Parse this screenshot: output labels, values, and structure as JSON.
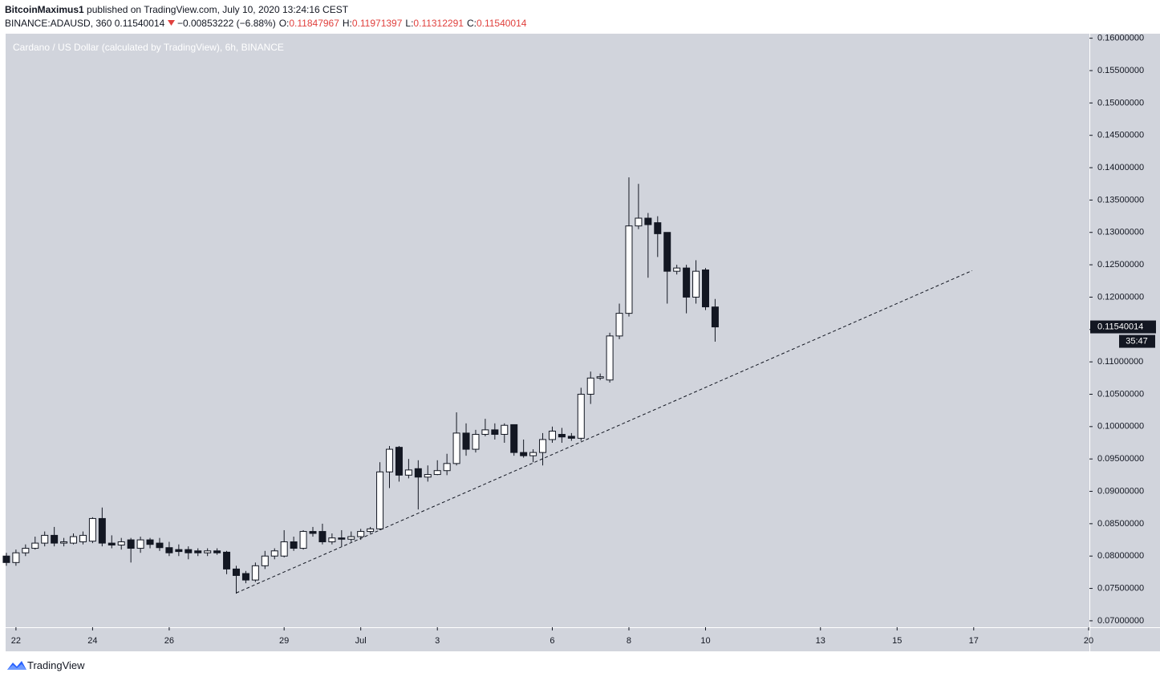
{
  "header": {
    "author": "BitcoinMaximus1",
    "published": "published on TradingView.com, July 10, 2020 13:24:16 CEST",
    "symbol": "BINANCE:ADAUSD, 360",
    "change": "−0.00853222 (−6.88%)",
    "labels": [
      "O:",
      "H:",
      "L:",
      "C:"
    ]
  },
  "footer": {
    "brand": "TradingView"
  },
  "chart_data": {
    "type": "candlestick",
    "title": "Cardano / US Dollar (calculated by TradingView), 6h, BINANCE",
    "x": [
      -0.25,
      0,
      0.25,
      0.5,
      0.75,
      1,
      1.25,
      1.5,
      1.75,
      2,
      2.25,
      2.5,
      2.75,
      3,
      3.25,
      3.5,
      3.75,
      4,
      4.25,
      4.5,
      4.75,
      5,
      5.25,
      5.5,
      5.75,
      6,
      6.25,
      6.5,
      6.75,
      7,
      7.25,
      7.5,
      7.75,
      8,
      8.25,
      8.5,
      8.75,
      9,
      9.25,
      9.5,
      9.75,
      10,
      10.25,
      10.5,
      10.75,
      11,
      11.25,
      11.5,
      11.75,
      12,
      12.25,
      12.5,
      12.75,
      13,
      13.25,
      13.5,
      13.75,
      14,
      14.25,
      14.5,
      14.75,
      15,
      15.25,
      15.5,
      15.75,
      16,
      16.25,
      16.5,
      16.75,
      17,
      17.25,
      17.5,
      17.75,
      18,
      18.25
    ],
    "open": [
      0.08,
      0.079,
      0.0805,
      0.0812,
      0.082,
      0.0832,
      0.082,
      0.082,
      0.0822,
      0.0823,
      0.0858,
      0.082,
      0.0817,
      0.0825,
      0.0812,
      0.0825,
      0.082,
      0.0813,
      0.081,
      0.081,
      0.0808,
      0.0805,
      0.0808,
      0.0806,
      0.078,
      0.0773,
      0.0763,
      0.0785,
      0.08,
      0.08,
      0.0822,
      0.0812,
      0.0838,
      0.0838,
      0.0822,
      0.0828,
      0.0826,
      0.083,
      0.0838,
      0.0842,
      0.093,
      0.0968,
      0.0925,
      0.0935,
      0.0922,
      0.0926,
      0.0932,
      0.0943,
      0.099,
      0.0965,
      0.0988,
      0.0995,
      0.0988,
      0.1003,
      0.096,
      0.0955,
      0.096,
      0.098,
      0.0988,
      0.0985,
      0.0982,
      0.105,
      0.1075,
      0.1072,
      0.114,
      0.1175,
      0.131,
      0.1322,
      0.1315,
      0.13,
      0.124,
      0.1245,
      0.12,
      0.1242,
      0.11847967
    ],
    "high": [
      0.0805,
      0.081,
      0.0818,
      0.083,
      0.0838,
      0.0845,
      0.0828,
      0.0835,
      0.0838,
      0.086,
      0.0875,
      0.0832,
      0.0828,
      0.0828,
      0.083,
      0.0828,
      0.0828,
      0.0822,
      0.0818,
      0.0815,
      0.0812,
      0.0812,
      0.0812,
      0.0808,
      0.0785,
      0.0777,
      0.079,
      0.0808,
      0.0812,
      0.084,
      0.083,
      0.084,
      0.0845,
      0.085,
      0.0835,
      0.084,
      0.0838,
      0.0842,
      0.0845,
      0.0945,
      0.097,
      0.097,
      0.095,
      0.0948,
      0.094,
      0.0948,
      0.0958,
      0.1022,
      0.1005,
      0.0995,
      0.1012,
      0.1005,
      0.1005,
      0.1003,
      0.098,
      0.0965,
      0.099,
      0.1,
      0.0998,
      0.099,
      0.106,
      0.1085,
      0.1082,
      0.1145,
      0.119,
      0.1385,
      0.1375,
      0.133,
      0.1325,
      0.13,
      0.125,
      0.125,
      0.1257,
      0.1245,
      0.11971397
    ],
    "low": [
      0.0785,
      0.0785,
      0.08,
      0.081,
      0.0815,
      0.0815,
      0.0815,
      0.0818,
      0.0818,
      0.082,
      0.0815,
      0.0812,
      0.081,
      0.079,
      0.0805,
      0.0812,
      0.0808,
      0.08,
      0.08,
      0.0795,
      0.08,
      0.08,
      0.0802,
      0.0772,
      0.0742,
      0.0758,
      0.076,
      0.078,
      0.0795,
      0.0798,
      0.0808,
      0.081,
      0.083,
      0.0818,
      0.0818,
      0.0815,
      0.0822,
      0.0825,
      0.0835,
      0.084,
      0.0905,
      0.0915,
      0.092,
      0.0872,
      0.0915,
      0.0925,
      0.0925,
      0.094,
      0.0955,
      0.096,
      0.0985,
      0.098,
      0.0975,
      0.0955,
      0.0952,
      0.0945,
      0.094,
      0.0975,
      0.0975,
      0.0978,
      0.0978,
      0.1035,
      0.1072,
      0.1068,
      0.1135,
      0.117,
      0.1305,
      0.123,
      0.1262,
      0.119,
      0.1235,
      0.1175,
      0.119,
      0.118,
      0.11312291
    ],
    "close": [
      0.079,
      0.0805,
      0.0812,
      0.082,
      0.0832,
      0.082,
      0.0822,
      0.083,
      0.0832,
      0.0858,
      0.082,
      0.0817,
      0.0822,
      0.0812,
      0.0825,
      0.0818,
      0.0813,
      0.0805,
      0.0807,
      0.0805,
      0.0805,
      0.0808,
      0.0805,
      0.078,
      0.077,
      0.0763,
      0.0785,
      0.08,
      0.0808,
      0.0822,
      0.0812,
      0.0838,
      0.0835,
      0.0822,
      0.0828,
      0.0826,
      0.083,
      0.0838,
      0.0842,
      0.093,
      0.0965,
      0.0925,
      0.0933,
      0.0922,
      0.0926,
      0.0932,
      0.0943,
      0.099,
      0.0965,
      0.0988,
      0.0995,
      0.0988,
      0.1002,
      0.096,
      0.0955,
      0.096,
      0.098,
      0.0993,
      0.0984,
      0.0982,
      0.105,
      0.1075,
      0.1077,
      0.114,
      0.1175,
      0.131,
      0.1322,
      0.1312,
      0.1298,
      0.124,
      0.1245,
      0.12,
      0.124,
      0.1185,
      0.11540014
    ],
    "up_color": "#ffffff",
    "down_color": "#131722",
    "background": "#d1d4dc",
    "xlim": [
      -0.27,
      28.02
    ],
    "xticks": [
      {
        "value": 0,
        "label": "22"
      },
      {
        "value": 2,
        "label": "24"
      },
      {
        "value": 4,
        "label": "26"
      },
      {
        "value": 7,
        "label": "29"
      },
      {
        "value": 9,
        "label": "Jul"
      },
      {
        "value": 11,
        "label": "3"
      },
      {
        "value": 14,
        "label": "6"
      },
      {
        "value": 16,
        "label": "8"
      },
      {
        "value": 18,
        "label": "10"
      },
      {
        "value": 21,
        "label": "13"
      },
      {
        "value": 23,
        "label": "15"
      },
      {
        "value": 25,
        "label": "17"
      },
      {
        "value": 28,
        "label": "20"
      }
    ],
    "ylim": [
      0.069,
      0.1607
    ],
    "yticks": [
      {
        "value": 0.07,
        "label": "0.07000000"
      },
      {
        "value": 0.075,
        "label": "0.07500000"
      },
      {
        "value": 0.08,
        "label": "0.08000000"
      },
      {
        "value": 0.085,
        "label": "0.08500000"
      },
      {
        "value": 0.09,
        "label": "0.09000000"
      },
      {
        "value": 0.095,
        "label": "0.09500000"
      },
      {
        "value": 0.1,
        "label": "0.10000000"
      },
      {
        "value": 0.105,
        "label": "0.10500000"
      },
      {
        "value": 0.11,
        "label": "0.11000000"
      },
      {
        "value": 0.115,
        "label": "0.11500000"
      },
      {
        "value": 0.12,
        "label": "0.12000000"
      },
      {
        "value": 0.125,
        "label": "0.12500000"
      },
      {
        "value": 0.13,
        "label": "0.13000000"
      },
      {
        "value": 0.135,
        "label": "0.13500000"
      },
      {
        "value": 0.14,
        "label": "0.14000000"
      },
      {
        "value": 0.145,
        "label": "0.14500000"
      },
      {
        "value": 0.15,
        "label": "0.15000000"
      },
      {
        "value": 0.155,
        "label": "0.15500000"
      },
      {
        "value": 0.16,
        "label": "0.16000000"
      }
    ],
    "trendline": {
      "x": [
        5.75,
        24.96
      ],
      "y": [
        0.0743,
        0.1241
      ]
    },
    "countdown": "35:47"
  }
}
